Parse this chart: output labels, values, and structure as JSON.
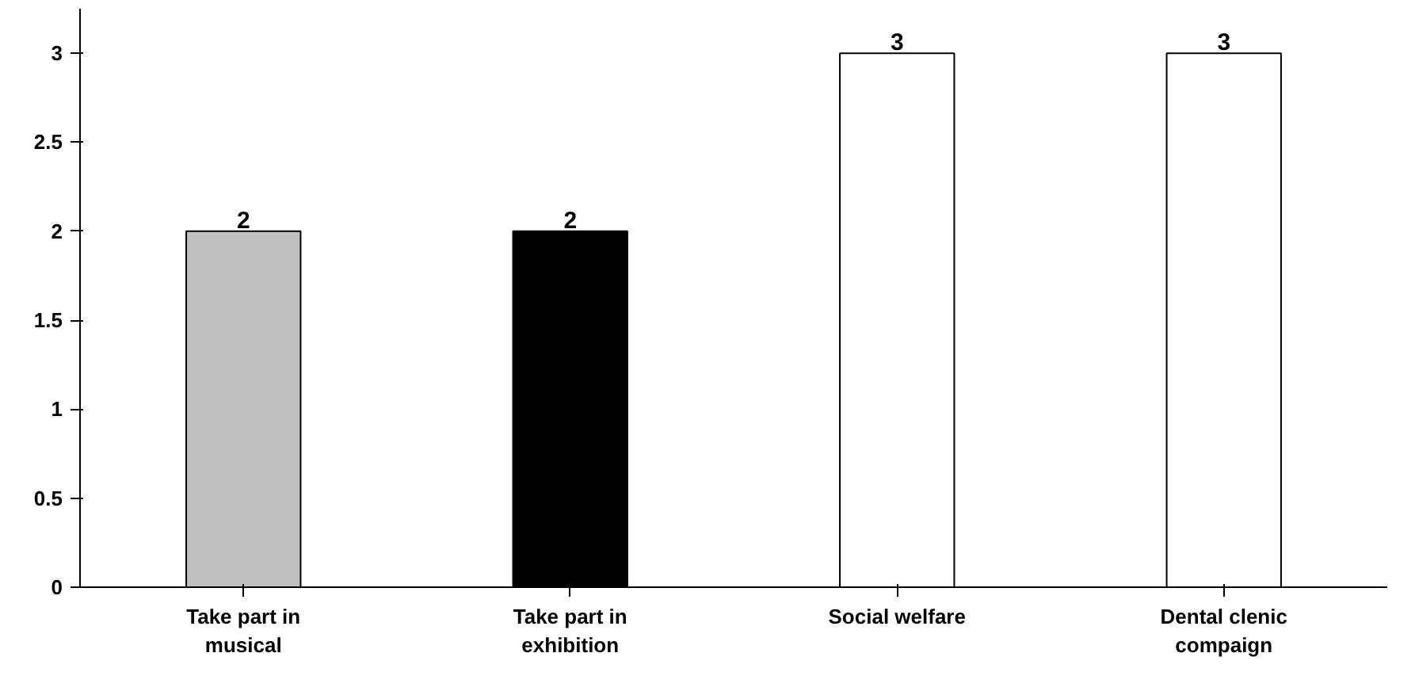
{
  "chart_data": {
    "type": "bar",
    "categories": [
      "Take part in musical",
      "Take part in exhibition",
      "Social welfare",
      "Dental clenic compaign"
    ],
    "values": [
      2,
      2,
      3,
      3
    ],
    "colors": [
      "#c0c0c0",
      "#000000",
      "#ffffff",
      "#ffffff"
    ],
    "ylim": [
      0,
      3.25
    ],
    "yticks": [
      0,
      0.5,
      1,
      1.5,
      2,
      2.5,
      3
    ],
    "data_labels": true,
    "grid": false
  }
}
